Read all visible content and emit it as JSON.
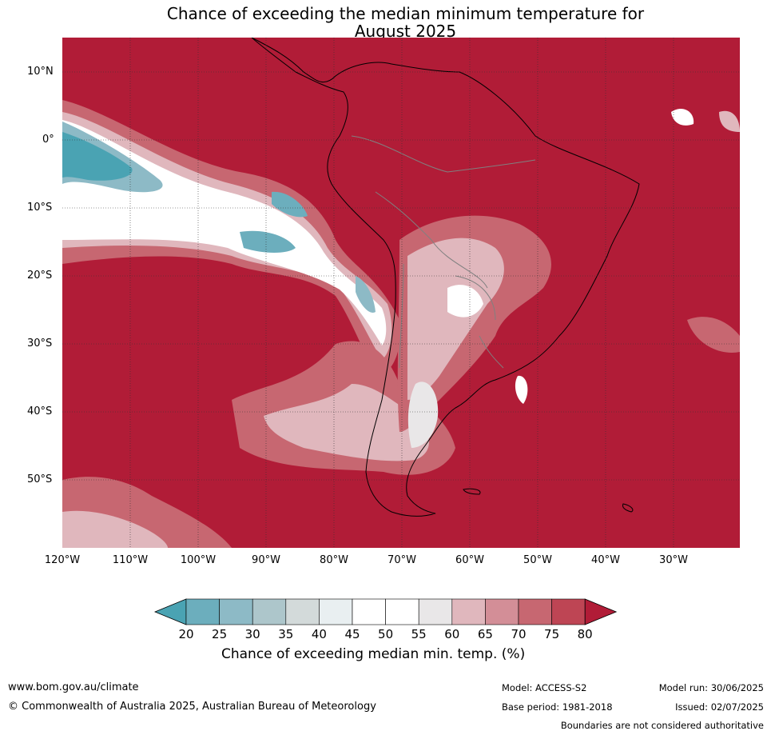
{
  "title_line1": "Chance of exceeding the median minimum temperature for",
  "title_line2": "August 2025",
  "lat_labels": [
    "10°N",
    "0°",
    "10°S",
    "20°S",
    "30°S",
    "40°S",
    "50°S"
  ],
  "lon_labels": [
    "120°W",
    "110°W",
    "100°W",
    "90°W",
    "80°W",
    "70°W",
    "60°W",
    "50°W",
    "40°W",
    "30°W"
  ],
  "colorbar": {
    "ticks": [
      "20",
      "25",
      "30",
      "35",
      "40",
      "45",
      "50",
      "55",
      "60",
      "65",
      "70",
      "75",
      "80"
    ],
    "colors": [
      "#4aa3b3",
      "#6caebd",
      "#8dbac6",
      "#adc6cb",
      "#d3dada",
      "#e9eff1",
      "#ffffff",
      "#ffffff",
      "#e9e7e8",
      "#e0b7bd",
      "#d38e97",
      "#c76771",
      "#be4554",
      "#b11c37"
    ],
    "label": "Chance of exceeding median min. temp. (%)"
  },
  "map_colors": {
    "ocean_warm": "#b11c37",
    "mid": "#c76771",
    "light": "#e0b7bd",
    "neutral": "#ffffff",
    "cool1": "#adc6cb",
    "cool2": "#4aa3b3"
  },
  "footer": {
    "website": "www.bom.gov.au/climate",
    "copyright": "© Commonwealth of Australia 2025, Australian Bureau of Meteorology",
    "model": "Model: ACCESS-S2",
    "base_period": "Base period: 1981-2018",
    "model_run": "Model run: 30/06/2025",
    "issued": "Issued: 02/07/2025",
    "disclaimer": "Boundaries are not considered authoritative"
  }
}
